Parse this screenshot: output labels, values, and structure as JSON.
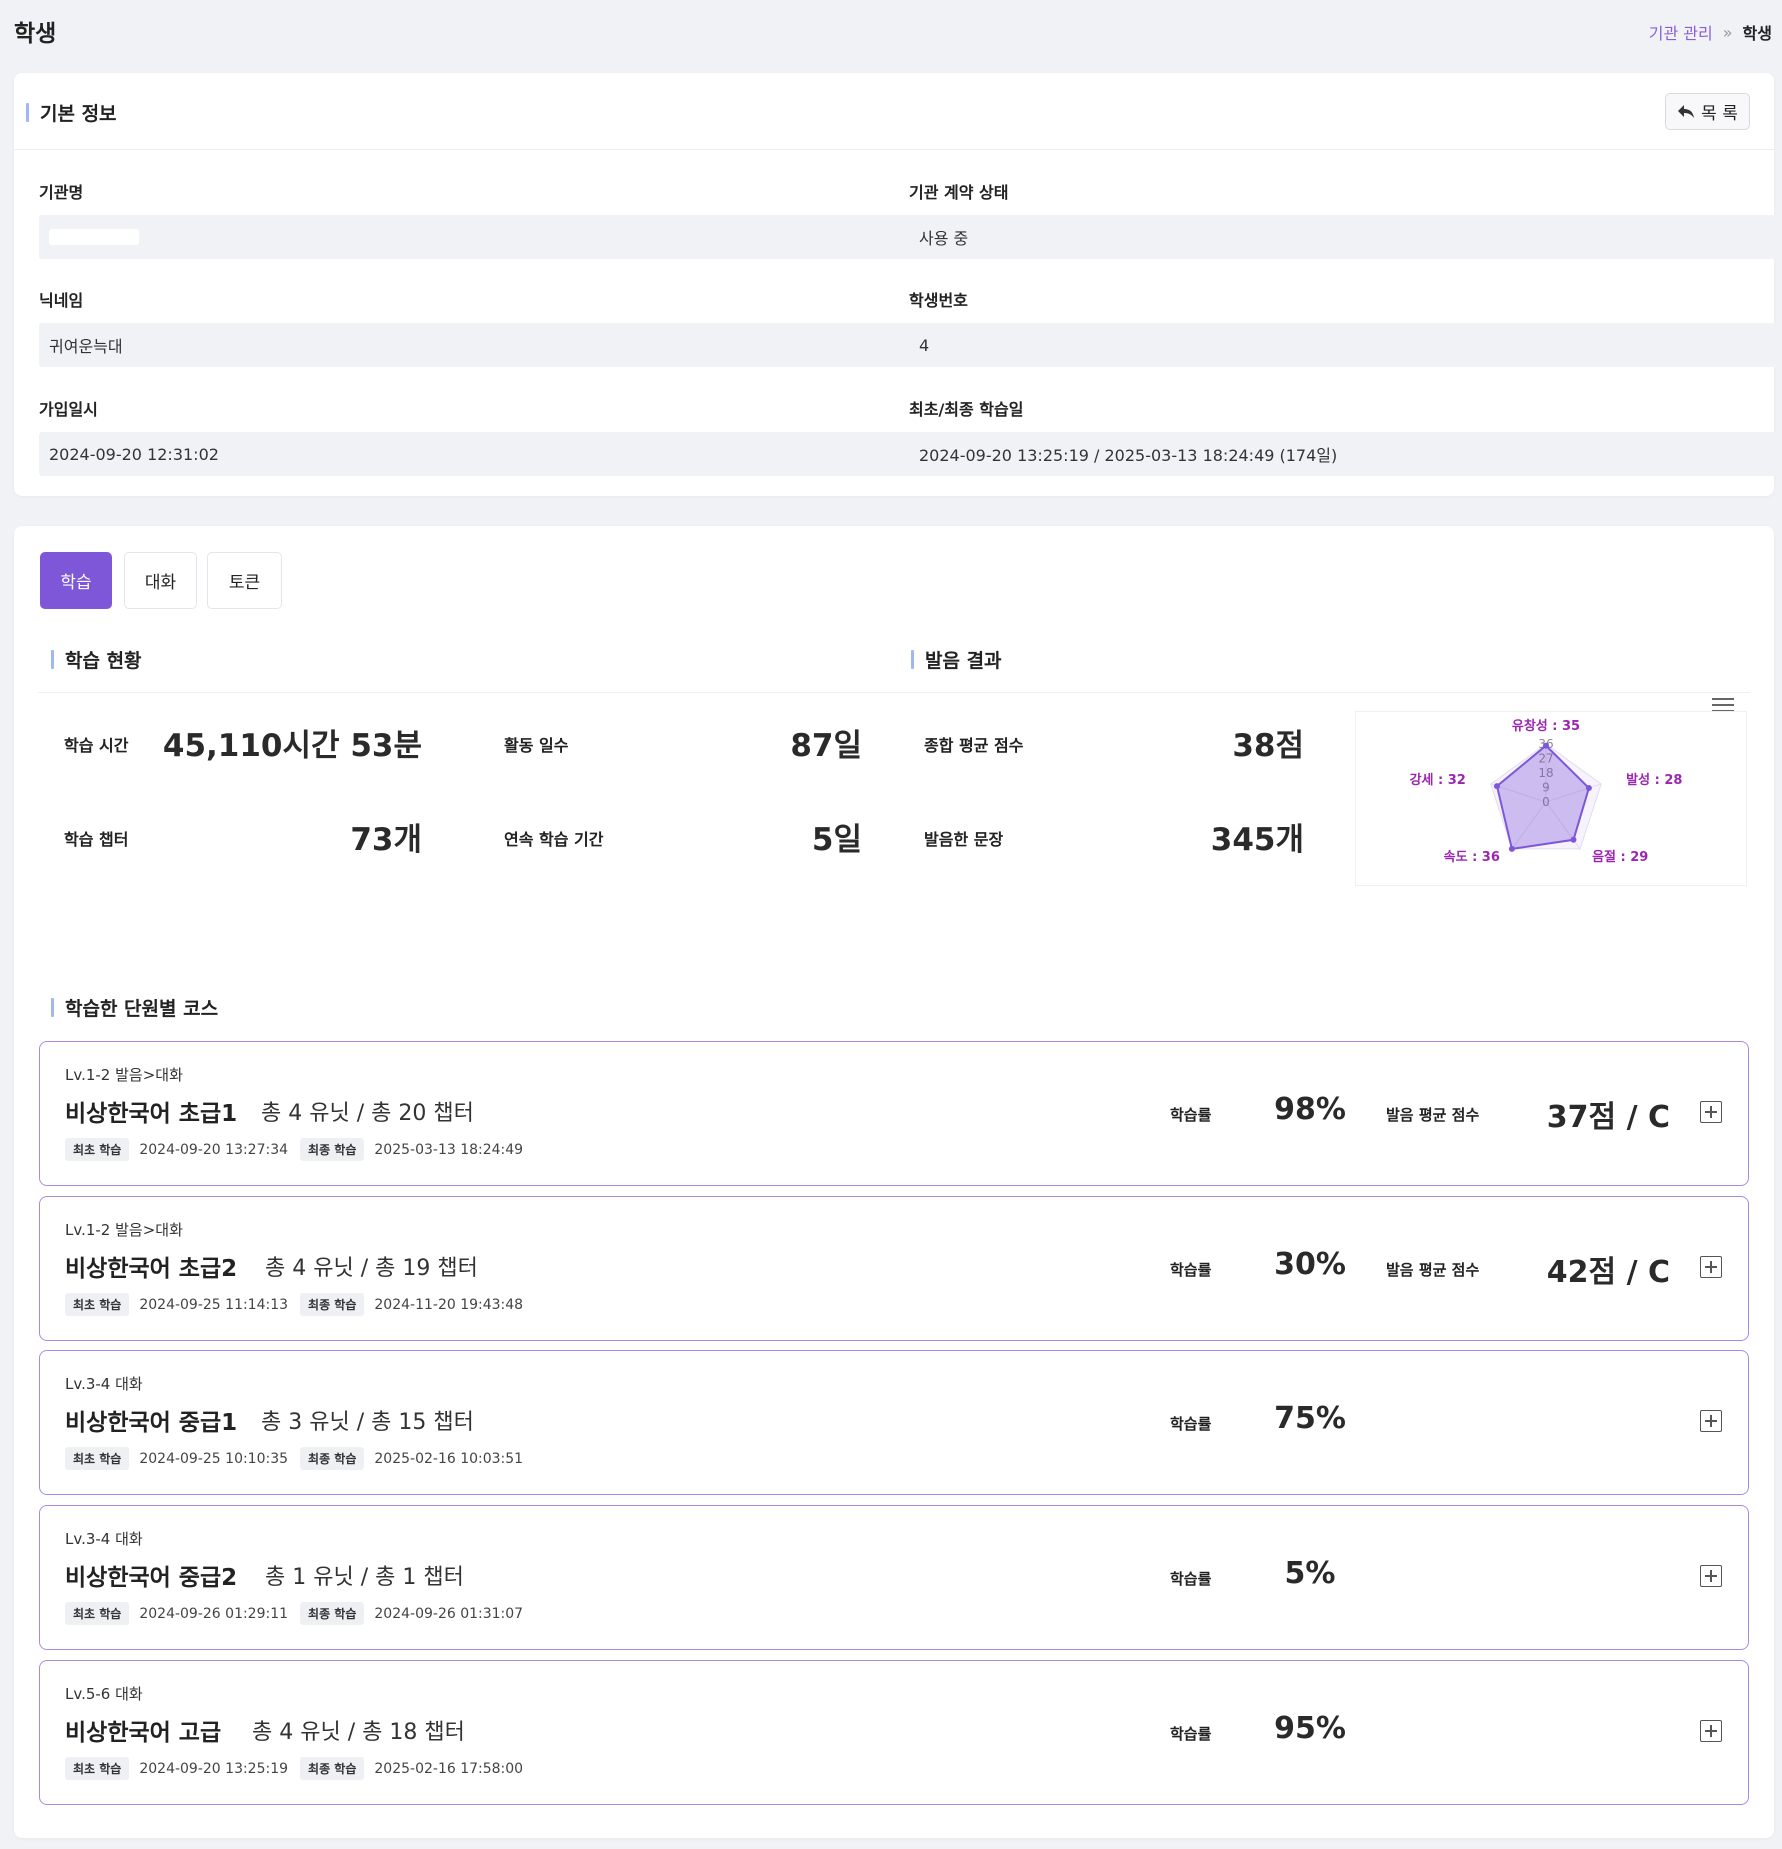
{
  "page": {
    "title": "학생"
  },
  "breadcrumb": {
    "link": "기관 관리",
    "separator": "»",
    "current": "학생"
  },
  "basic_info": {
    "heading": "기본 정보",
    "back_button": "목 록",
    "fields": {
      "institution_name": {
        "label": "기관명",
        "value": ""
      },
      "contract_status": {
        "label": "기관 계약 상태",
        "value": "사용 중"
      },
      "nickname": {
        "label": "닉네임",
        "value": "귀여운늑대"
      },
      "student_number": {
        "label": "학생번호",
        "value": "4"
      },
      "joined_at": {
        "label": "가입일시",
        "value": "2024-09-20 12:31:02"
      },
      "first_last_study": {
        "label": "최초/최종 학습일",
        "value": "2024-09-20 13:25:19 / 2025-03-13 18:24:49 (174일)"
      }
    }
  },
  "tabs": [
    {
      "label": "학습",
      "active": true
    },
    {
      "label": "대화",
      "active": false
    },
    {
      "label": "토큰",
      "active": false
    }
  ],
  "study_status": {
    "heading": "학습 현황",
    "study_time": {
      "label": "학습 시간",
      "value": "45,110시간 53분"
    },
    "active_days": {
      "label": "활동 일수",
      "value": "87일"
    },
    "chapters": {
      "label": "학습 챕터",
      "value": "73개"
    },
    "streak": {
      "label": "연속 학습 기간",
      "value": "5일"
    }
  },
  "pronunciation": {
    "heading": "발음 결과",
    "avg_score": {
      "label": "종합 평균 점수",
      "value": "38점"
    },
    "sentences": {
      "label": "발음한 문장",
      "value": "345개"
    }
  },
  "chart_data": {
    "type": "radar",
    "axes": [
      "유창성",
      "발성",
      "음절",
      "속도",
      "강세"
    ],
    "values": [
      35,
      28,
      29,
      36,
      32
    ],
    "axis_labels": [
      "유창성 : 35",
      "발성 : 28",
      "음절 : 29",
      "속도 : 36",
      "강세 : 32"
    ],
    "scale_ticks": [
      "0",
      "9",
      "18",
      "27",
      "36"
    ],
    "range": [
      0,
      36
    ],
    "series_color": "#7e57d8",
    "label_color": "#9b27b0"
  },
  "courses_section": {
    "heading": "학습한 단원별 코스"
  },
  "courses": [
    {
      "level": "Lv.1-2 발음>대화",
      "name": "비상한국어 초급1",
      "units": "총 4 유닛 / 총 20 챕터",
      "first_label": "최초 학습",
      "first": "2024-09-20 13:27:34",
      "last_label": "최종 학습",
      "last": "2025-03-13 18:24:49",
      "rate_label": "학습률",
      "rate": "98%",
      "score_label": "발음 평균 점수",
      "score": "37점 / C"
    },
    {
      "level": "Lv.1-2 발음>대화",
      "name": "비상한국어 초급2",
      "units": "총 4 유닛 / 총 19 챕터",
      "first_label": "최초 학습",
      "first": "2024-09-25 11:14:13",
      "last_label": "최종 학습",
      "last": "2024-11-20 19:43:48",
      "rate_label": "학습률",
      "rate": "30%",
      "score_label": "발음 평균 점수",
      "score": "42점 / C"
    },
    {
      "level": "Lv.3-4 대화",
      "name": "비상한국어 중급1",
      "units": "총 3 유닛 / 총 15 챕터",
      "first_label": "최초 학습",
      "first": "2024-09-25 10:10:35",
      "last_label": "최종 학습",
      "last": "2025-02-16 10:03:51",
      "rate_label": "학습률",
      "rate": "75%"
    },
    {
      "level": "Lv.3-4 대화",
      "name": "비상한국어 중급2",
      "units": "총 1 유닛 / 총 1 챕터",
      "first_label": "최초 학습",
      "first": "2024-09-26 01:29:11",
      "last_label": "최종 학습",
      "last": "2024-09-26 01:31:07",
      "rate_label": "학습률",
      "rate": "5%"
    },
    {
      "level": "Lv.5-6 대화",
      "name": "비상한국어 고급",
      "units": "총 4 유닛 / 총 18 챕터",
      "first_label": "최초 학습",
      "first": "2024-09-20 13:25:19",
      "last_label": "최종 학습",
      "last": "2025-02-16 17:58:00",
      "rate_label": "학습률",
      "rate": "95%"
    }
  ]
}
